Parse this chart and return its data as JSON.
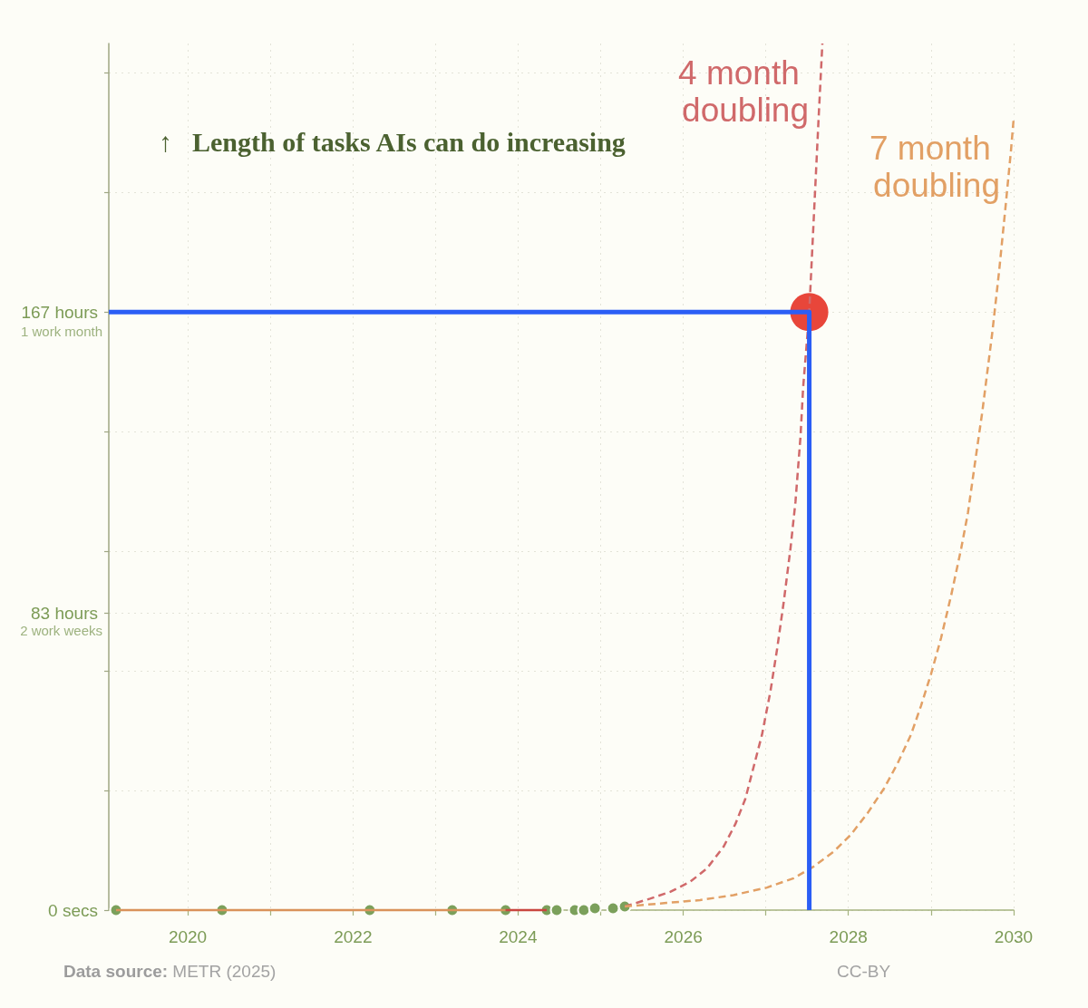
{
  "chart_data": {
    "type": "line",
    "ylabel": "↑ Length of tasks AIs can do increasing",
    "xlim": [
      "2019-01-17",
      "2030-01-01"
    ],
    "xticks": [
      "2020",
      {
        "value": "2021",
        "label": null
      },
      "2022",
      {
        "value": "2023",
        "label": null
      },
      "2024",
      {
        "value": "2025",
        "label": null
      },
      "2026",
      {
        "value": "2027",
        "label": null
      },
      "2028",
      {
        "value": "2029",
        "label": null
      },
      "2030"
    ],
    "ylim": [
      0,
      242
    ],
    "yticks": [
      {
        "value": 0,
        "label": "0 secs"
      },
      {
        "value": 33.4,
        "label": null
      },
      {
        "value": 66.8,
        "label": null
      },
      {
        "value": 83,
        "label": "83 hours"
      },
      {
        "value": 100.2,
        "label": null
      },
      {
        "value": 133.6,
        "label": null
      },
      {
        "value": 167,
        "label": "167 hours"
      },
      {
        "value": 200.4,
        "label": null
      },
      {
        "value": 233.8,
        "label": null
      }
    ],
    "grid": true,
    "legend": false,
    "series": [
      {
        "color": "#d9925a",
        "line_style": "solid",
        "marker": "none",
        "x": [
          "2019-02-18",
          "2023-11-07"
        ],
        "values": [
          0,
          0
        ]
      },
      {
        "color": "#c9463f",
        "line_style": "solid",
        "marker": "none",
        "x": [
          "2023-11-07",
          "2024-05-07"
        ],
        "values": [
          0,
          0
        ]
      },
      {
        "name": "4 month doubling",
        "color": "#d0696a",
        "line_style": "dashed",
        "marker": "none",
        "x": [
          "2025-04-17",
          "2025-08-07",
          "2025-11-04",
          "2026-01-31",
          "2026-04-15",
          "2026-06-28",
          "2026-08-19",
          "2026-10-02",
          "2026-11-08",
          "2026-12-15",
          "2027-01-21",
          "2027-02-20",
          "2027-03-21",
          "2027-04-20",
          "2027-05-12",
          "2027-06-03",
          "2027-06-15",
          "2027-07-12",
          "2027-07-28",
          "2027-08-10",
          "2027-08-23",
          "2027-09-08"
        ],
        "values": [
          1,
          3.2,
          5.1,
          7.9,
          11.6,
          17.7,
          24,
          31,
          40,
          49,
          61,
          73,
          86,
          101,
          114,
          132,
          146,
          167,
          188,
          205,
          222,
          242
        ]
      },
      {
        "name": "7 month doubling",
        "color": "#e2a065",
        "line_style": "dashed",
        "marker": "none",
        "x": [
          "2025-04-17",
          "2025-10-19",
          "2026-03-16",
          "2026-08-11",
          "2027-01-06",
          "2027-05-04",
          "2027-08-01",
          "2027-10-29",
          "2028-01-11",
          "2028-03-25",
          "2028-06-07",
          "2028-08-06",
          "2028-10-04",
          "2028-11-17",
          "2029-01-01",
          "2029-02-14",
          "2029-03-31",
          "2029-05-14",
          "2029-06-13",
          "2029-07-12",
          "2029-08-15",
          "2029-09-28",
          "2029-10-28",
          "2029-11-27",
          "2029-12-20",
          "2030-01-01"
        ],
        "values": [
          1,
          2,
          2.8,
          4.2,
          6.3,
          8.9,
          12.2,
          16.4,
          21,
          27,
          34,
          41,
          49,
          57,
          66,
          76,
          88,
          101,
          111,
          124,
          139,
          161,
          178,
          197,
          212,
          221
        ]
      },
      {
        "type": "scatter",
        "color": "#7ba05b",
        "marker": "circle",
        "x": [
          "2019-02-18",
          "2020-06-01",
          "2022-03-16",
          "2023-03-16",
          "2023-11-07",
          "2024-05-07",
          "2024-06-20",
          "2024-09-08",
          "2024-10-18",
          "2024-12-06",
          "2025-02-24",
          "2025-04-17"
        ],
        "values": [
          0,
          0,
          0,
          0,
          0,
          0,
          0,
          0,
          0,
          0.5,
          0.5,
          1
        ]
      },
      {
        "color": "#2b5ef5",
        "line_style": "solid",
        "marker": "none",
        "x": [
          "2019-01-17",
          "2027-07-12",
          "2027-07-12"
        ],
        "values": [
          167,
          167,
          0
        ]
      },
      {
        "type": "scatter",
        "color": "#e8463a",
        "marker": "circle",
        "x": [
          "2027-07-12"
        ],
        "values": [
          167
        ]
      }
    ],
    "annotations": [
      "Data source: METR (2025)",
      "CC-BY",
      "2 work weeks",
      "1 work month"
    ]
  }
}
